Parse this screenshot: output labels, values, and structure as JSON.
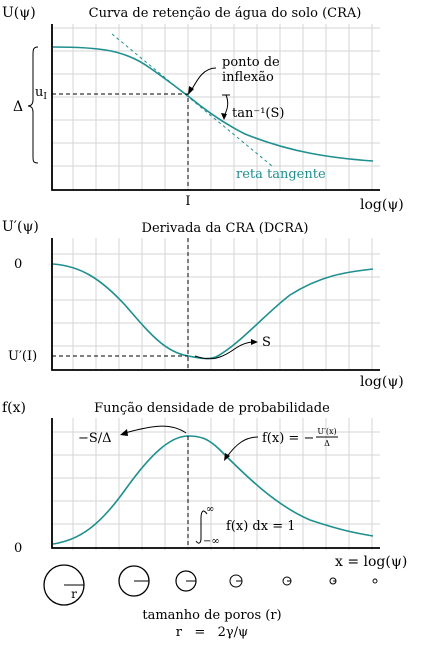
{
  "panel1": {
    "title": "Curva de retenção de água do solo (CRA)",
    "ylabel": "U(ψ)",
    "xlabel": "log(ψ)",
    "ui_label": "u",
    "ui_sub": "I",
    "delta_label": "Δ",
    "x_tick": "I",
    "inflection_label_1": "ponto de",
    "inflection_label_2": "inflexão",
    "slope_label": "tan⁻¹(S)",
    "tangent_label": "reta tangente"
  },
  "panel2": {
    "title": "Derivada da CRA (DCRA)",
    "ylabel": "U′(ψ)",
    "xlabel": "log(ψ)",
    "zero_tick": "0",
    "min_tick": "U′(I)",
    "s_label": "S"
  },
  "panel3": {
    "title": "Função densidade de probabilidade",
    "ylabel": "f(x)",
    "xlabel": "x = log(ψ)",
    "zero_tick": "0",
    "peak_label": "−S/Δ",
    "fx_label_left": "f(x) = −",
    "fx_frac_num": "U′(x)",
    "fx_frac_den": "Δ",
    "integral_label": "f(x) dx = 1",
    "int_upper": "∞",
    "int_lower": "−∞"
  },
  "pores": {
    "r_label": "r",
    "caption": "tamanho de poros (r)",
    "formula": "r   =   2γ/ψ"
  },
  "colors": {
    "curve": "#1f8f8f",
    "grid": "#d6d6d6"
  }
}
